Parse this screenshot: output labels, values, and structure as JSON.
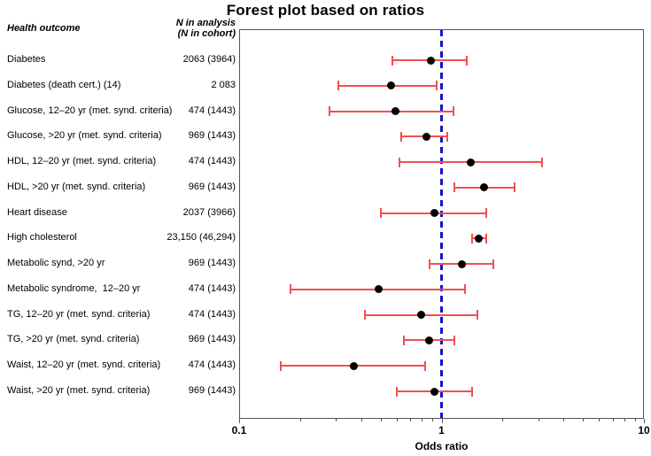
{
  "title": "Forest plot based on  ratios",
  "columns": {
    "outcome_header": "Health outcome",
    "n_header_line1": "N in analysis",
    "n_header_line2": "(N in cohort)"
  },
  "axis": {
    "label": "Odds ratio",
    "scale": "log",
    "min": 0.1,
    "max": 10,
    "major_ticks": [
      0.1,
      1,
      10
    ],
    "major_tick_labels": [
      "0.1",
      "1",
      "10"
    ],
    "reference_line": 1
  },
  "colors": {
    "ci_color": "#f25050",
    "point_color": "#000000",
    "reference_line_color": "#1414cc",
    "frame_color": "#555555"
  },
  "chart_data": {
    "type": "forest",
    "title": "Forest plot based on  ratios",
    "xlabel": "Odds ratio",
    "x_range": [
      0.1,
      10
    ],
    "rows": [
      {
        "label": "Diabetes",
        "n": "2063 (3964)",
        "or": 0.89,
        "ci_low": 0.57,
        "ci_high": 1.33
      },
      {
        "label": "Diabetes (death cert.) (14)",
        "n": "2 083",
        "or": 0.56,
        "ci_low": 0.31,
        "ci_high": 0.95
      },
      {
        "label": "Glucose, 12–20 yr (met. synd. criteria)",
        "n": "474 (1443)",
        "or": 0.59,
        "ci_low": 0.28,
        "ci_high": 1.15
      },
      {
        "label": "Glucose, >20 yr (met. synd. criteria)",
        "n": "969 (1443)",
        "or": 0.84,
        "ci_low": 0.63,
        "ci_high": 1.07
      },
      {
        "label": "HDL, 12–20 yr (met. synd. criteria)",
        "n": "474 (1443)",
        "or": 1.39,
        "ci_low": 0.62,
        "ci_high": 3.15
      },
      {
        "label": "HDL, >20 yr (met. synd. criteria)",
        "n": "969 (1443)",
        "or": 1.62,
        "ci_low": 1.16,
        "ci_high": 2.29
      },
      {
        "label": "Heart disease",
        "n": "2037 (3966)",
        "or": 0.92,
        "ci_low": 0.5,
        "ci_high": 1.67
      },
      {
        "label": "High cholesterol",
        "n": "23,150 (46,294)",
        "or": 1.53,
        "ci_low": 1.41,
        "ci_high": 1.66
      },
      {
        "label": "Metabolic synd, >20 yr",
        "n": "969 (1443)",
        "or": 1.26,
        "ci_low": 0.87,
        "ci_high": 1.81
      },
      {
        "label": "Metabolic syndrome,  12–20 yr",
        "n": "474 (1443)",
        "or": 0.49,
        "ci_low": 0.18,
        "ci_high": 1.31
      },
      {
        "label": "TG, 12–20 yr (met. synd. criteria)",
        "n": "474 (1443)",
        "or": 0.79,
        "ci_low": 0.42,
        "ci_high": 1.5
      },
      {
        "label": "TG, >20 yr (met. synd. criteria)",
        "n": "969 (1443)",
        "or": 0.87,
        "ci_low": 0.65,
        "ci_high": 1.16
      },
      {
        "label": "Waist, 12–20 yr (met. synd. criteria)",
        "n": "474 (1443)",
        "or": 0.37,
        "ci_low": 0.16,
        "ci_high": 0.83
      },
      {
        "label": "Waist, >20 yr (met. synd. criteria)",
        "n": "969 (1443)",
        "or": 0.92,
        "ci_low": 0.6,
        "ci_high": 1.42
      }
    ]
  }
}
